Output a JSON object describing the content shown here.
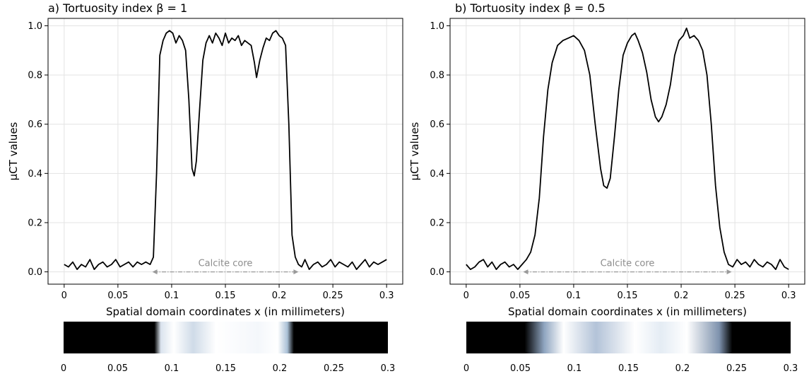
{
  "chart_data": [
    {
      "type": "line",
      "title": "a) Tortuosity index β = 1",
      "ylabel": "μCT values",
      "xlabel": "Spatial domain coordinates x (in millimeters)",
      "xlim": [
        -0.015,
        0.315
      ],
      "ylim": [
        -0.05,
        1.03
      ],
      "xticks": [
        0,
        0.05,
        0.1,
        0.15,
        0.2,
        0.25,
        0.3
      ],
      "xtick_labels": [
        "0",
        "0.05",
        "0.1",
        "0.15",
        "0.2",
        "0.25",
        "0.3"
      ],
      "yticks": [
        0.0,
        0.2,
        0.4,
        0.6,
        0.8,
        1.0
      ],
      "ytick_labels": [
        "0.0",
        "0.2",
        "0.4",
        "0.6",
        "0.8",
        "1.0"
      ],
      "grid": true,
      "annotation": {
        "text": "Calcite core",
        "x_start": 0.082,
        "x_end": 0.218,
        "y": 0.0
      },
      "series": [
        {
          "color": "#000000",
          "x": [
            0,
            0.004,
            0.008,
            0.012,
            0.016,
            0.02,
            0.024,
            0.028,
            0.032,
            0.036,
            0.04,
            0.044,
            0.048,
            0.052,
            0.056,
            0.06,
            0.064,
            0.068,
            0.072,
            0.076,
            0.08,
            0.083,
            0.086,
            0.089,
            0.092,
            0.095,
            0.098,
            0.101,
            0.104,
            0.107,
            0.11,
            0.113,
            0.116,
            0.119,
            0.121,
            0.123,
            0.126,
            0.129,
            0.132,
            0.135,
            0.138,
            0.141,
            0.144,
            0.147,
            0.15,
            0.153,
            0.156,
            0.159,
            0.162,
            0.165,
            0.168,
            0.171,
            0.174,
            0.177,
            0.179,
            0.182,
            0.185,
            0.188,
            0.191,
            0.194,
            0.197,
            0.2,
            0.203,
            0.206,
            0.209,
            0.212,
            0.215,
            0.218,
            0.221,
            0.224,
            0.228,
            0.232,
            0.236,
            0.24,
            0.244,
            0.248,
            0.252,
            0.256,
            0.26,
            0.264,
            0.268,
            0.272,
            0.276,
            0.28,
            0.284,
            0.288,
            0.292,
            0.296,
            0.3
          ],
          "values": [
            0.03,
            0.02,
            0.04,
            0.01,
            0.03,
            0.02,
            0.05,
            0.01,
            0.03,
            0.04,
            0.02,
            0.03,
            0.05,
            0.02,
            0.03,
            0.04,
            0.02,
            0.04,
            0.03,
            0.04,
            0.03,
            0.06,
            0.4,
            0.88,
            0.94,
            0.97,
            0.98,
            0.97,
            0.93,
            0.96,
            0.94,
            0.9,
            0.7,
            0.42,
            0.39,
            0.45,
            0.66,
            0.86,
            0.93,
            0.96,
            0.93,
            0.97,
            0.95,
            0.92,
            0.97,
            0.93,
            0.95,
            0.94,
            0.96,
            0.92,
            0.94,
            0.93,
            0.92,
            0.85,
            0.79,
            0.86,
            0.91,
            0.95,
            0.94,
            0.97,
            0.98,
            0.96,
            0.95,
            0.92,
            0.6,
            0.15,
            0.06,
            0.03,
            0.02,
            0.05,
            0.01,
            0.03,
            0.04,
            0.02,
            0.03,
            0.05,
            0.02,
            0.04,
            0.03,
            0.02,
            0.04,
            0.01,
            0.03,
            0.05,
            0.02,
            0.04,
            0.03,
            0.04,
            0.05
          ]
        }
      ],
      "strip": {
        "x_start": 0.088,
        "x_end": 0.212,
        "xticks": [
          "0",
          "0.05",
          "0.1",
          "0.15",
          "0.2",
          "0.25",
          "0.3"
        ]
      }
    },
    {
      "type": "line",
      "title": "b) Tortuosity index β = 0.5",
      "ylabel": "μCT values",
      "xlabel": "Spatial domain coordinates x (in millimeters)",
      "xlim": [
        -0.015,
        0.315
      ],
      "ylim": [
        -0.05,
        1.03
      ],
      "xticks": [
        0,
        0.05,
        0.1,
        0.15,
        0.2,
        0.25,
        0.3
      ],
      "xtick_labels": [
        "0",
        "0.05",
        "0.1",
        "0.15",
        "0.2",
        "0.25",
        "0.3"
      ],
      "yticks": [
        0.0,
        0.2,
        0.4,
        0.6,
        0.8,
        1.0
      ],
      "ytick_labels": [
        "0.0",
        "0.2",
        "0.4",
        "0.6",
        "0.8",
        "1.0"
      ],
      "grid": true,
      "annotation": {
        "text": "Calcite core",
        "x_start": 0.053,
        "x_end": 0.247,
        "y": 0.0
      },
      "series": [
        {
          "color": "#000000",
          "x": [
            0,
            0.004,
            0.008,
            0.012,
            0.016,
            0.02,
            0.024,
            0.028,
            0.032,
            0.036,
            0.04,
            0.044,
            0.048,
            0.052,
            0.056,
            0.06,
            0.064,
            0.068,
            0.072,
            0.076,
            0.08,
            0.085,
            0.09,
            0.095,
            0.1,
            0.105,
            0.11,
            0.115,
            0.12,
            0.125,
            0.128,
            0.131,
            0.134,
            0.138,
            0.142,
            0.146,
            0.15,
            0.154,
            0.157,
            0.16,
            0.164,
            0.168,
            0.172,
            0.176,
            0.179,
            0.182,
            0.186,
            0.19,
            0.194,
            0.198,
            0.202,
            0.205,
            0.208,
            0.212,
            0.216,
            0.22,
            0.224,
            0.228,
            0.232,
            0.236,
            0.24,
            0.244,
            0.248,
            0.252,
            0.256,
            0.26,
            0.264,
            0.268,
            0.272,
            0.276,
            0.28,
            0.284,
            0.288,
            0.292,
            0.296,
            0.3
          ],
          "values": [
            0.03,
            0.01,
            0.02,
            0.04,
            0.05,
            0.02,
            0.04,
            0.01,
            0.03,
            0.04,
            0.02,
            0.03,
            0.01,
            0.03,
            0.05,
            0.08,
            0.15,
            0.3,
            0.55,
            0.74,
            0.85,
            0.92,
            0.94,
            0.95,
            0.96,
            0.94,
            0.9,
            0.8,
            0.6,
            0.42,
            0.35,
            0.34,
            0.38,
            0.55,
            0.74,
            0.88,
            0.93,
            0.96,
            0.97,
            0.94,
            0.89,
            0.81,
            0.7,
            0.63,
            0.61,
            0.63,
            0.68,
            0.76,
            0.88,
            0.94,
            0.96,
            0.99,
            0.95,
            0.96,
            0.94,
            0.9,
            0.8,
            0.6,
            0.35,
            0.18,
            0.08,
            0.03,
            0.02,
            0.05,
            0.03,
            0.04,
            0.02,
            0.05,
            0.03,
            0.02,
            0.04,
            0.03,
            0.01,
            0.05,
            0.02,
            0.01
          ]
        }
      ],
      "strip": {
        "x_start": 0.06,
        "x_end": 0.245,
        "xticks": [
          "0",
          "0.05",
          "0.1",
          "0.15",
          "0.2",
          "0.25",
          "0.3"
        ]
      }
    }
  ]
}
